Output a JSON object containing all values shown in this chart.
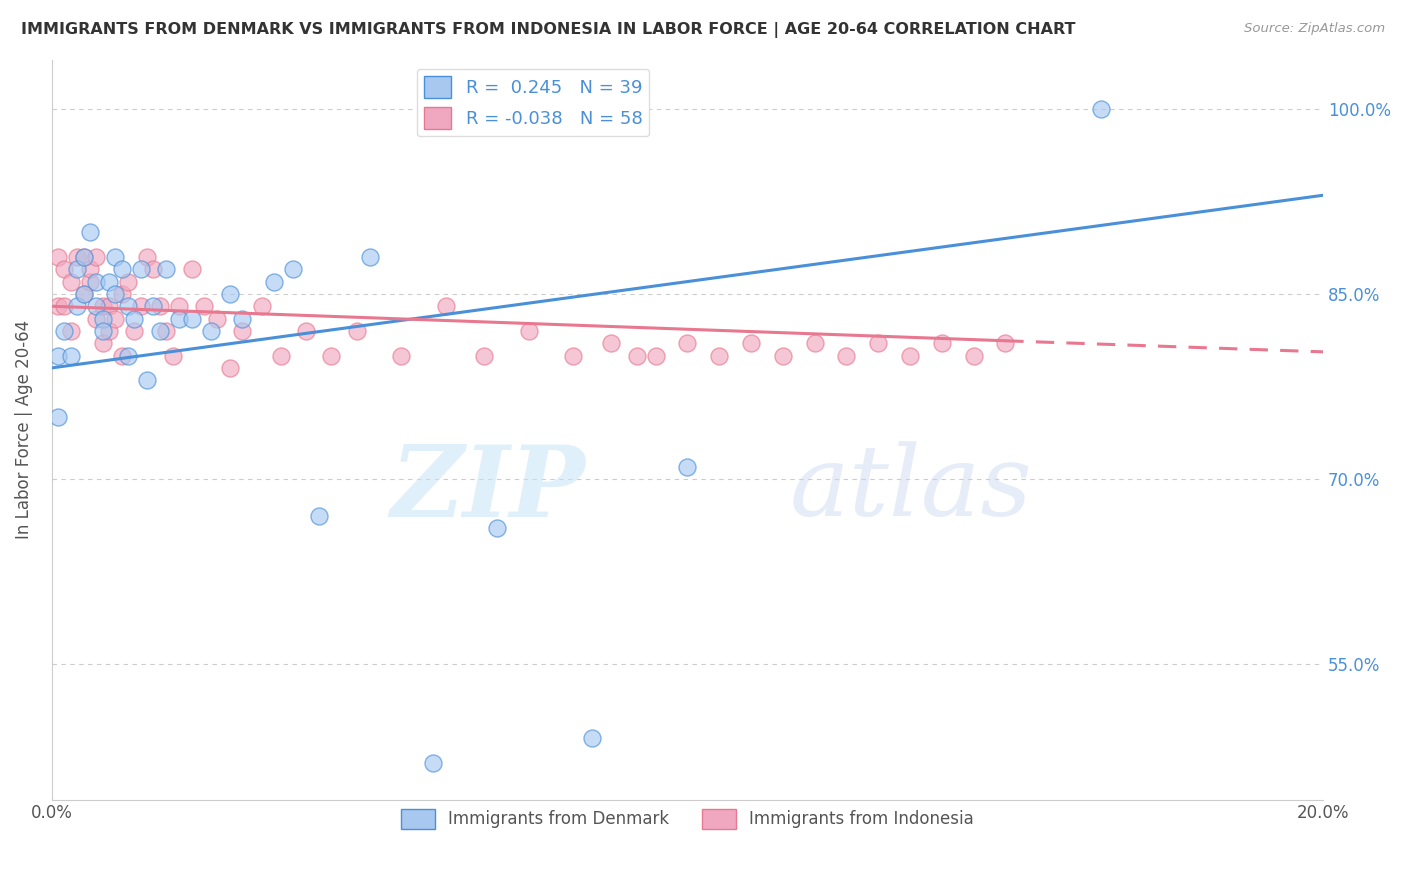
{
  "title": "IMMIGRANTS FROM DENMARK VS IMMIGRANTS FROM INDONESIA IN LABOR FORCE | AGE 20-64 CORRELATION CHART",
  "source": "Source: ZipAtlas.com",
  "ylabel": "In Labor Force | Age 20-64",
  "xlim": [
    0.0,
    0.2
  ],
  "ylim": [
    0.44,
    1.04
  ],
  "ytick_labels": [
    "55.0%",
    "70.0%",
    "85.0%",
    "100.0%"
  ],
  "yticks": [
    0.55,
    0.7,
    0.85,
    1.0
  ],
  "r_denmark": 0.245,
  "n_denmark": 39,
  "r_indonesia": -0.038,
  "n_indonesia": 58,
  "denmark_color": "#a8c8f0",
  "indonesia_color": "#f0a8c0",
  "denmark_line_color": "#4a90d9",
  "indonesia_line_color": "#e87890",
  "background_color": "#ffffff",
  "scatter_denmark_x": [
    0.001,
    0.001,
    0.002,
    0.003,
    0.004,
    0.004,
    0.005,
    0.005,
    0.006,
    0.007,
    0.007,
    0.008,
    0.008,
    0.009,
    0.01,
    0.01,
    0.011,
    0.012,
    0.012,
    0.013,
    0.014,
    0.015,
    0.016,
    0.017,
    0.018,
    0.02,
    0.022,
    0.025,
    0.028,
    0.03,
    0.035,
    0.038,
    0.042,
    0.05,
    0.06,
    0.07,
    0.085,
    0.1,
    0.165
  ],
  "scatter_denmark_y": [
    0.8,
    0.75,
    0.82,
    0.8,
    0.84,
    0.87,
    0.88,
    0.85,
    0.9,
    0.86,
    0.84,
    0.83,
    0.82,
    0.86,
    0.85,
    0.88,
    0.87,
    0.84,
    0.8,
    0.83,
    0.87,
    0.78,
    0.84,
    0.82,
    0.87,
    0.83,
    0.83,
    0.82,
    0.85,
    0.83,
    0.86,
    0.87,
    0.67,
    0.88,
    0.47,
    0.66,
    0.49,
    0.71,
    1.0
  ],
  "scatter_indonesia_x": [
    0.001,
    0.001,
    0.002,
    0.002,
    0.003,
    0.003,
    0.004,
    0.005,
    0.005,
    0.006,
    0.006,
    0.007,
    0.007,
    0.008,
    0.008,
    0.009,
    0.009,
    0.01,
    0.011,
    0.011,
    0.012,
    0.013,
    0.014,
    0.015,
    0.016,
    0.017,
    0.018,
    0.019,
    0.02,
    0.022,
    0.024,
    0.026,
    0.028,
    0.03,
    0.033,
    0.036,
    0.04,
    0.044,
    0.048,
    0.055,
    0.062,
    0.068,
    0.075,
    0.082,
    0.088,
    0.092,
    0.095,
    0.1,
    0.105,
    0.11,
    0.115,
    0.12,
    0.125,
    0.13,
    0.135,
    0.14,
    0.145,
    0.15
  ],
  "scatter_indonesia_y": [
    0.84,
    0.88,
    0.87,
    0.84,
    0.86,
    0.82,
    0.88,
    0.85,
    0.88,
    0.86,
    0.87,
    0.88,
    0.83,
    0.84,
    0.81,
    0.84,
    0.82,
    0.83,
    0.85,
    0.8,
    0.86,
    0.82,
    0.84,
    0.88,
    0.87,
    0.84,
    0.82,
    0.8,
    0.84,
    0.87,
    0.84,
    0.83,
    0.79,
    0.82,
    0.84,
    0.8,
    0.82,
    0.8,
    0.82,
    0.8,
    0.84,
    0.8,
    0.82,
    0.8,
    0.81,
    0.8,
    0.8,
    0.81,
    0.8,
    0.81,
    0.8,
    0.81,
    0.8,
    0.81,
    0.8,
    0.81,
    0.8,
    0.81
  ],
  "dk_line_x0": 0.0,
  "dk_line_y0": 0.79,
  "dk_line_x1": 0.2,
  "dk_line_y1": 0.93,
  "id_line_x0": 0.0,
  "id_line_y0": 0.84,
  "id_line_x1": 0.15,
  "id_line_y1": 0.812,
  "id_line_dash_x0": 0.15,
  "id_line_dash_y0": 0.812,
  "id_line_dash_x1": 0.2,
  "id_line_dash_y1": 0.803
}
